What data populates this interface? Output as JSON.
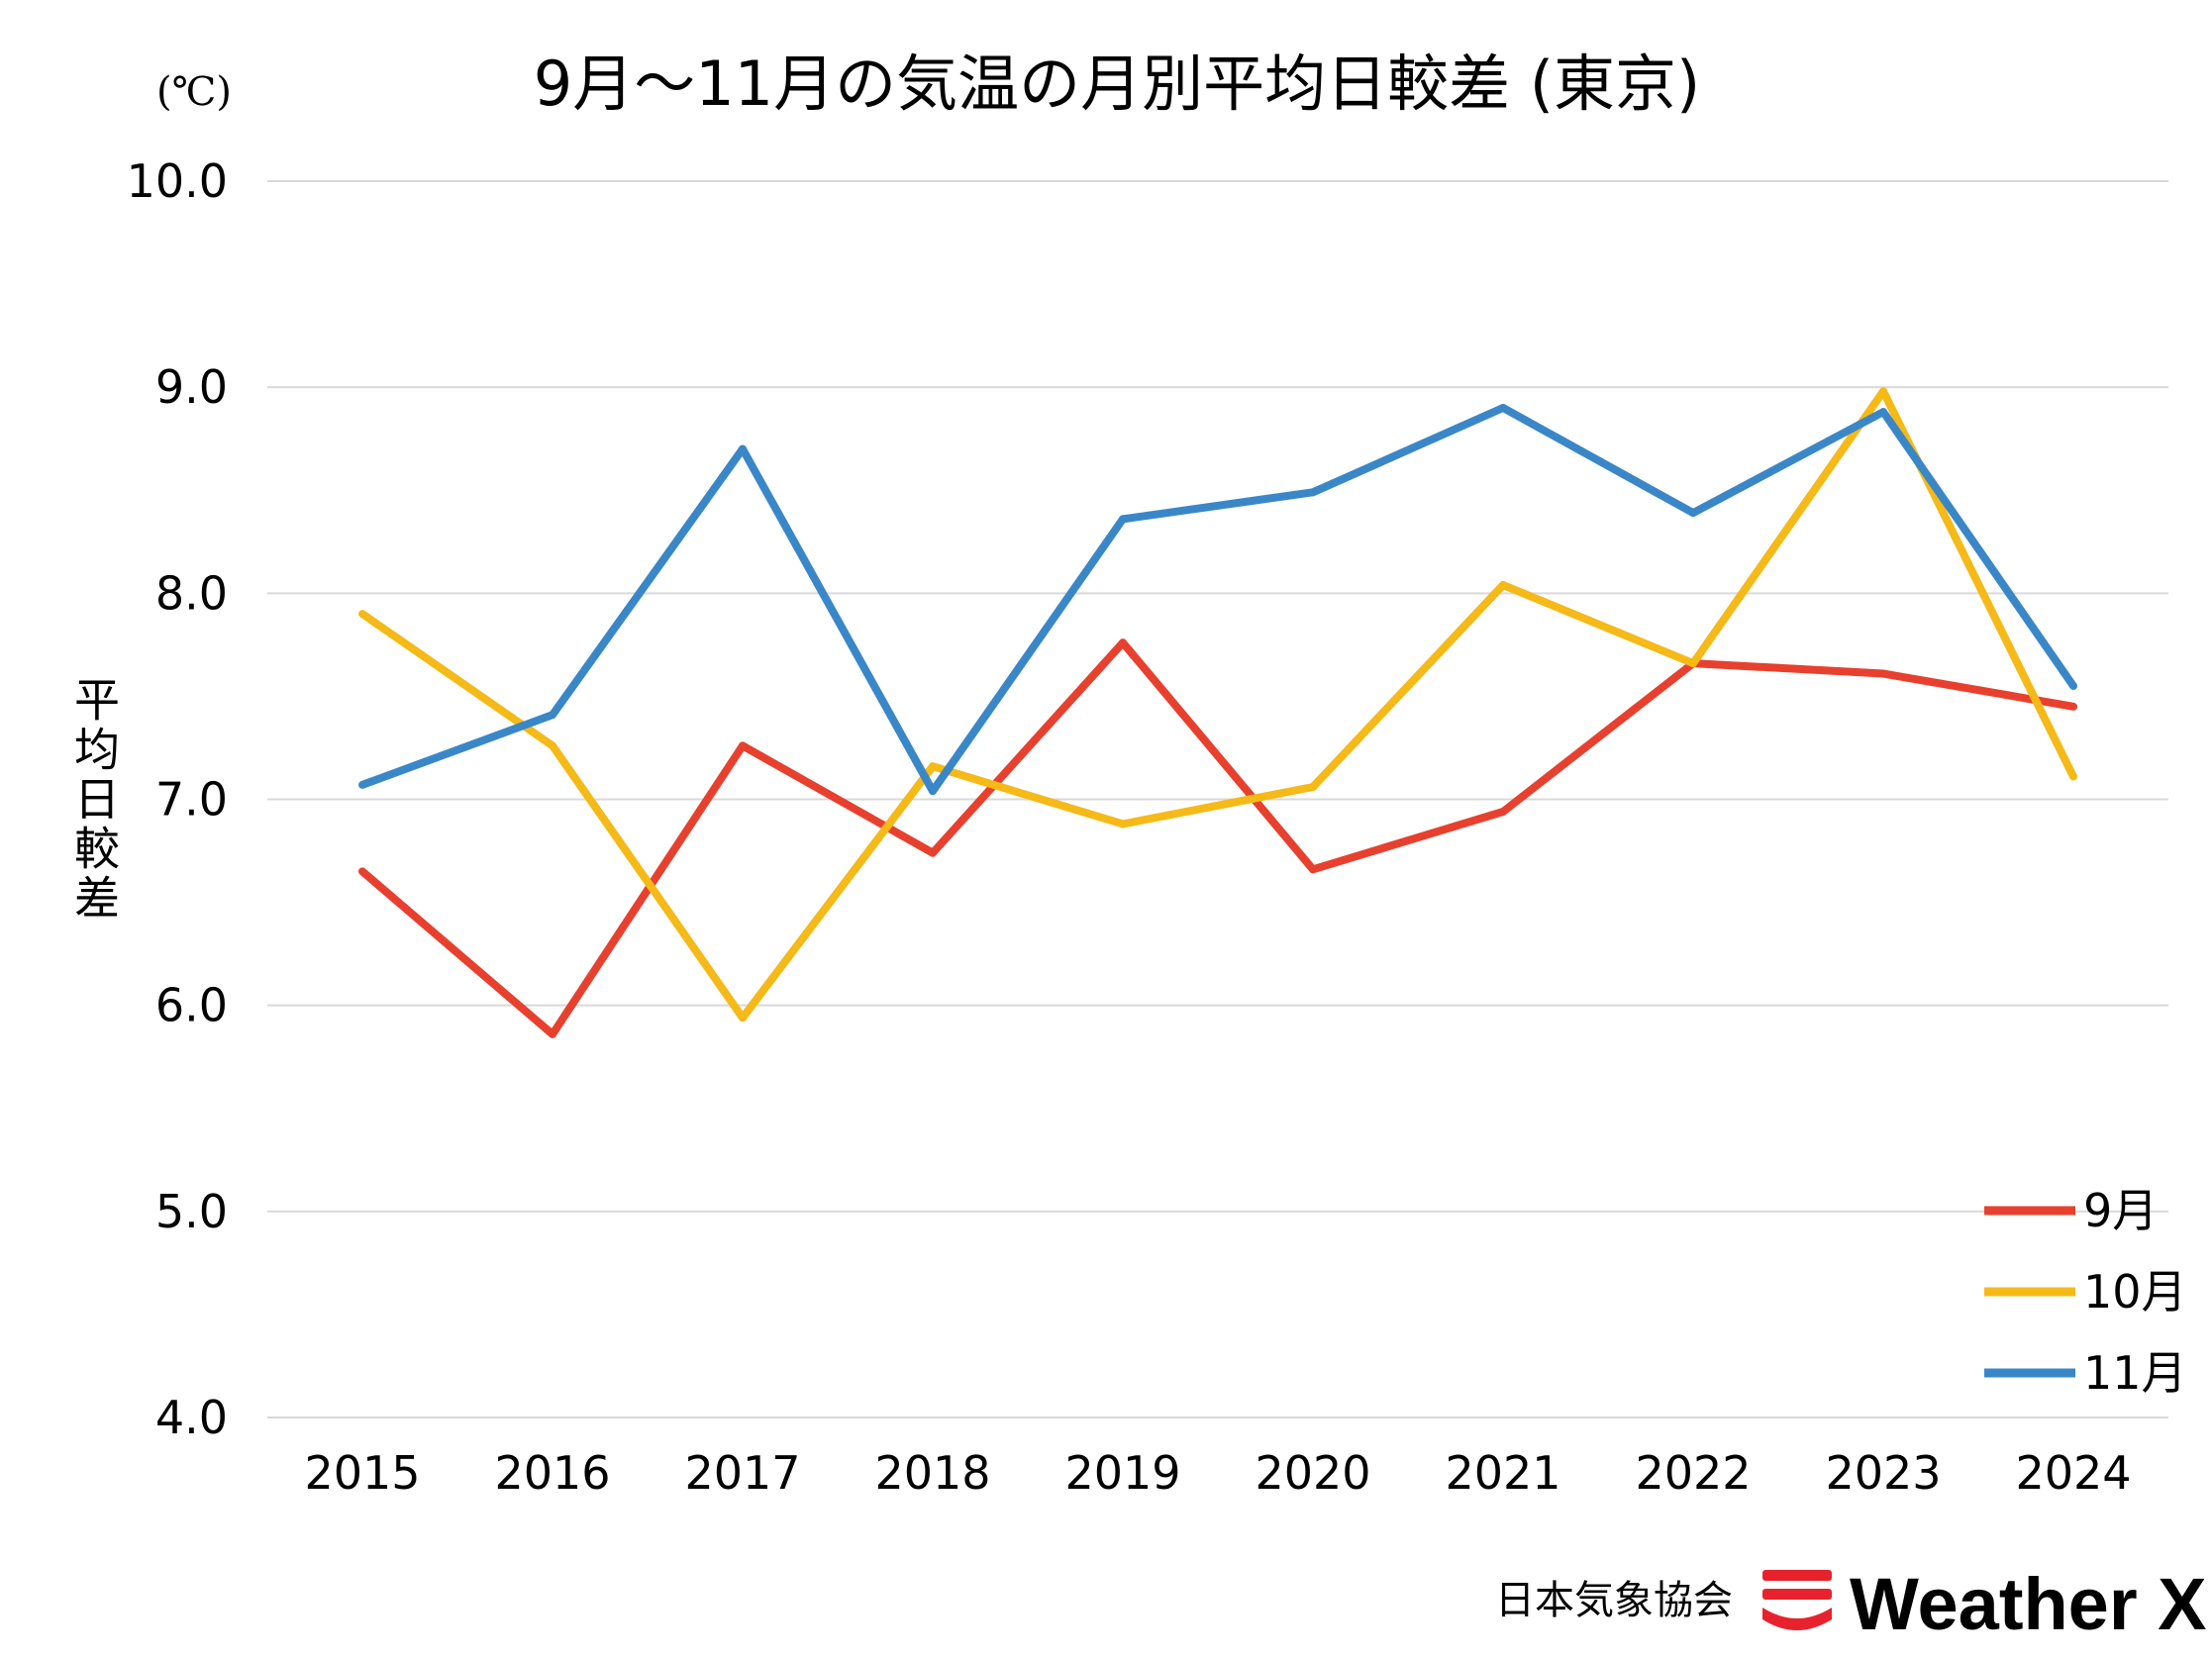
{
  "chart_data": {
    "type": "line",
    "title": "9月～11月の気温の月別平均日較差 (東京)",
    "unit": "(℃)",
    "ylabel": "平均日較差",
    "xlabel": "",
    "categories": [
      "2015",
      "2016",
      "2017",
      "2018",
      "2019",
      "2020",
      "2021",
      "2022",
      "2023",
      "2024"
    ],
    "ylim": [
      4.0,
      10.0
    ],
    "yticks": [
      "4.0",
      "5.0",
      "6.0",
      "7.0",
      "8.0",
      "9.0",
      "10.0"
    ],
    "grid": true,
    "legend_position": "bottom-right",
    "series": [
      {
        "name": "9月",
        "color": "#e8402e",
        "values": [
          6.65,
          5.86,
          7.26,
          6.74,
          7.76,
          6.66,
          6.94,
          7.66,
          7.61,
          7.45
        ]
      },
      {
        "name": "10月",
        "color": "#f5b918",
        "values": [
          7.9,
          7.26,
          5.94,
          7.16,
          6.88,
          7.06,
          8.04,
          7.66,
          8.98,
          7.11
        ]
      },
      {
        "name": "11月",
        "color": "#3a87c8",
        "values": [
          7.07,
          7.41,
          8.7,
          7.04,
          8.36,
          8.49,
          8.9,
          8.39,
          8.88,
          7.55
        ]
      }
    ]
  },
  "footer": {
    "organization": "日本気象協会",
    "brand": "Weather X",
    "brand_color": "#e8222c"
  }
}
